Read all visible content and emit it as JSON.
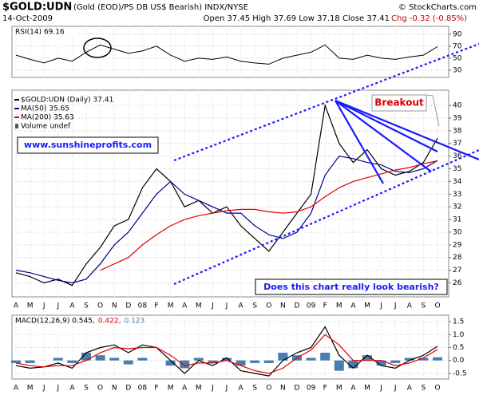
{
  "header": {
    "symbol": "$GOLD:UDN",
    "description": "(Gold (EOD)/PS DB US$ Bearish) INDX/NYSE",
    "date": "14-Oct-2009",
    "copyright": "© StockCharts.com",
    "quote": "Open 37.45 High 37.69 Low 37.18 Close 37.41",
    "change": "Chg -0.32 (-0.85%)"
  },
  "annotations": [
    "www.sunshineprofits.com",
    "Breakout",
    "Does this chart really look bearish?"
  ],
  "chart_data": [
    {
      "type": "line",
      "title": "RSI(14) 69.16",
      "color": "#000000",
      "values": [
        55,
        48,
        42,
        50,
        45,
        60,
        72,
        65,
        58,
        62,
        70,
        55,
        45,
        50,
        48,
        52,
        45,
        42,
        40,
        50,
        55,
        60,
        72,
        50,
        48,
        55,
        50,
        48,
        52,
        55,
        69.16
      ],
      "ylim": [
        18,
        103
      ],
      "yticks": [
        30,
        50,
        70,
        90
      ],
      "grid": true
    },
    {
      "type": "line",
      "categories": [
        "A",
        "M",
        "J",
        "J",
        "A",
        "S",
        "O",
        "N",
        "D",
        "08",
        "F",
        "M",
        "A",
        "M",
        "J",
        "J",
        "A",
        "S",
        "O",
        "N",
        "D",
        "09",
        "F",
        "M",
        "A",
        "M",
        "J",
        "J",
        "A",
        "S",
        "O"
      ],
      "series": [
        {
          "name": "$GOLD:UDN (Daily) 37.41",
          "color": "#000000",
          "values": [
            26.8,
            26.5,
            26.0,
            26.3,
            25.8,
            27.5,
            28.8,
            30.5,
            31.0,
            33.5,
            35.0,
            34.0,
            32.0,
            32.5,
            31.5,
            32.0,
            30.5,
            29.5,
            28.5,
            30.0,
            31.5,
            33.0,
            40.0,
            37.0,
            35.5,
            36.5,
            35.0,
            34.5,
            34.8,
            35.5,
            37.41
          ]
        },
        {
          "name": "MA(50) 35.65",
          "color": "#00008b",
          "values": [
            27.0,
            26.8,
            26.5,
            26.2,
            26.0,
            26.3,
            27.5,
            29.0,
            30.0,
            31.5,
            33.0,
            34.0,
            33.0,
            32.5,
            32.0,
            31.5,
            31.5,
            30.5,
            29.8,
            29.5,
            30.0,
            31.5,
            34.5,
            36.0,
            35.8,
            35.5,
            35.3,
            34.8,
            34.7,
            35.0,
            35.65
          ]
        },
        {
          "name": "MA(200) 35.63",
          "color": "#e00000",
          "values": [
            null,
            null,
            null,
            null,
            null,
            null,
            27.0,
            27.5,
            28.0,
            29.0,
            29.8,
            30.5,
            31.0,
            31.3,
            31.5,
            31.7,
            31.8,
            31.8,
            31.6,
            31.5,
            31.6,
            32.0,
            32.8,
            33.5,
            34.0,
            34.3,
            34.6,
            34.9,
            35.1,
            35.4,
            35.63
          ]
        }
      ],
      "legend_extra": "Volume undef",
      "ylim": [
        24.9,
        41.2
      ],
      "yticks": [
        26,
        27,
        28,
        29,
        30,
        31,
        32,
        33,
        34,
        35,
        36,
        37,
        38,
        39,
        40
      ],
      "grid": true
    },
    {
      "type": "line",
      "categories": [
        "A",
        "M",
        "J",
        "J",
        "A",
        "S",
        "O",
        "N",
        "D",
        "08",
        "F",
        "M",
        "A",
        "M",
        "J",
        "J",
        "A",
        "S",
        "O",
        "N",
        "D",
        "09",
        "F",
        "M",
        "A",
        "M",
        "J",
        "J",
        "A",
        "S",
        "O"
      ],
      "series": [
        {
          "name": "MACD(12,26,9) 0.545,",
          "color": "#000000",
          "values": [
            -0.2,
            -0.3,
            -0.25,
            -0.1,
            -0.3,
            0.3,
            0.5,
            0.6,
            0.3,
            0.6,
            0.5,
            0.0,
            -0.5,
            0.0,
            -0.2,
            0.1,
            -0.4,
            -0.5,
            -0.6,
            0.0,
            0.3,
            0.5,
            1.3,
            0.2,
            -0.3,
            0.2,
            -0.2,
            -0.3,
            0.0,
            0.2,
            0.545
          ]
        },
        {
          "name": "0.422,",
          "color": "#e00000",
          "values": [
            -0.1,
            -0.2,
            -0.25,
            -0.2,
            -0.2,
            0.0,
            0.3,
            0.5,
            0.45,
            0.5,
            0.5,
            0.2,
            -0.2,
            -0.1,
            -0.1,
            0.0,
            -0.2,
            -0.4,
            -0.5,
            -0.3,
            0.1,
            0.4,
            1.0,
            0.6,
            0.0,
            0.0,
            0.0,
            -0.2,
            -0.1,
            0.1,
            0.422
          ]
        },
        {
          "name": "0.123",
          "color": "#4a7cb0",
          "style": "histogram",
          "values": [
            -0.1,
            -0.1,
            0,
            0.1,
            -0.1,
            0.3,
            0.2,
            0.1,
            -0.15,
            0.1,
            0,
            -0.2,
            -0.3,
            0.1,
            -0.1,
            0.1,
            -0.2,
            -0.1,
            -0.1,
            0.3,
            0.2,
            0.1,
            0.3,
            -0.4,
            -0.3,
            0.2,
            -0.2,
            -0.1,
            0.1,
            0.1,
            0.123
          ]
        }
      ],
      "ylim": [
        -0.72,
        1.75
      ],
      "yticks": [
        {
          "value": -0.5,
          "label": "-0.5"
        },
        {
          "value": 0,
          "label": "0.0"
        },
        0.5,
        {
          "value": 1,
          "label": "1.0"
        },
        1.5
      ],
      "grid": true
    }
  ]
}
